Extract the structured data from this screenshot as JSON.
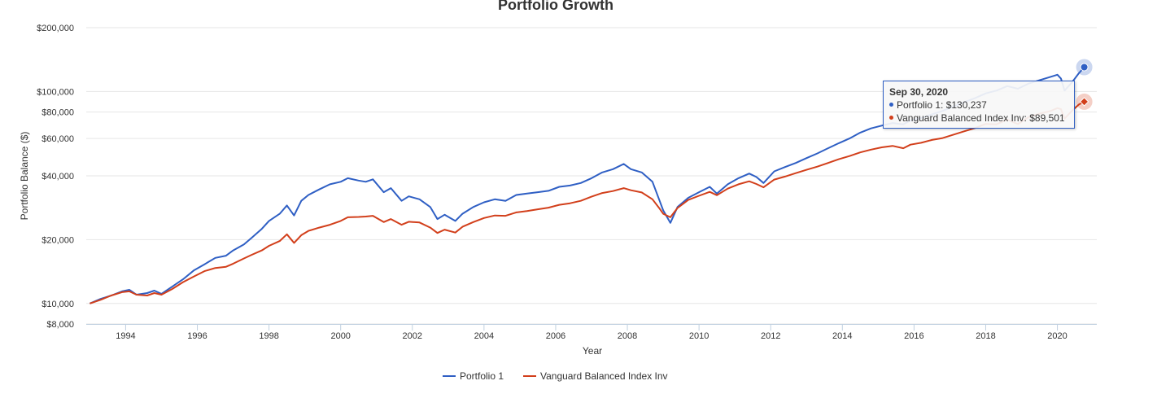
{
  "chart_data": {
    "type": "line",
    "title": "Portfolio Growth",
    "xlabel": "Year",
    "ylabel": "Portfolio Balance ($)",
    "yscale": "log",
    "ylim": [
      8000,
      200000
    ],
    "xlim": [
      1992.9,
      2021.1
    ],
    "yticks": [
      {
        "value": 200000,
        "label": "$200,000"
      },
      {
        "value": 100000,
        "label": "$100,000"
      },
      {
        "value": 80000,
        "label": "$80,000"
      },
      {
        "value": 60000,
        "label": "$60,000"
      },
      {
        "value": 40000,
        "label": "$40,000"
      },
      {
        "value": 20000,
        "label": "$20,000"
      },
      {
        "value": 10000,
        "label": "$10,000"
      },
      {
        "value": 8000,
        "label": "$8,000"
      }
    ],
    "xticks": [
      {
        "value": 1994,
        "label": "1994"
      },
      {
        "value": 1996,
        "label": "1996"
      },
      {
        "value": 1998,
        "label": "1998"
      },
      {
        "value": 2000,
        "label": "2000"
      },
      {
        "value": 2002,
        "label": "2002"
      },
      {
        "value": 2004,
        "label": "2004"
      },
      {
        "value": 2006,
        "label": "2006"
      },
      {
        "value": 2008,
        "label": "2008"
      },
      {
        "value": 2010,
        "label": "2010"
      },
      {
        "value": 2012,
        "label": "2012"
      },
      {
        "value": 2014,
        "label": "2014"
      },
      {
        "value": 2016,
        "label": "2016"
      },
      {
        "value": 2018,
        "label": "2018"
      },
      {
        "value": 2020,
        "label": "2020"
      }
    ],
    "grid": true,
    "legend_position": "bottom",
    "series": [
      {
        "name": "Portfolio 1",
        "color": "#2f5fc4",
        "points": [
          [
            1993.0,
            10000
          ],
          [
            1993.3,
            10500
          ],
          [
            1993.6,
            10900
          ],
          [
            1993.9,
            11400
          ],
          [
            1994.1,
            11600
          ],
          [
            1994.3,
            11000
          ],
          [
            1994.6,
            11200
          ],
          [
            1994.8,
            11500
          ],
          [
            1995.0,
            11100
          ],
          [
            1995.3,
            12000
          ],
          [
            1995.6,
            13000
          ],
          [
            1995.9,
            14300
          ],
          [
            1996.2,
            15300
          ],
          [
            1996.5,
            16400
          ],
          [
            1996.8,
            16800
          ],
          [
            1997.0,
            17800
          ],
          [
            1997.3,
            19000
          ],
          [
            1997.5,
            20300
          ],
          [
            1997.8,
            22500
          ],
          [
            1998.0,
            24500
          ],
          [
            1998.3,
            26500
          ],
          [
            1998.5,
            29000
          ],
          [
            1998.7,
            26000
          ],
          [
            1998.9,
            30500
          ],
          [
            1999.1,
            32500
          ],
          [
            1999.4,
            34500
          ],
          [
            1999.7,
            36500
          ],
          [
            2000.0,
            37500
          ],
          [
            2000.2,
            39000
          ],
          [
            2000.5,
            38000
          ],
          [
            2000.7,
            37500
          ],
          [
            2000.9,
            38500
          ],
          [
            2001.2,
            33500
          ],
          [
            2001.4,
            35000
          ],
          [
            2001.7,
            30500
          ],
          [
            2001.9,
            32000
          ],
          [
            2002.2,
            31000
          ],
          [
            2002.5,
            28500
          ],
          [
            2002.7,
            25000
          ],
          [
            2002.9,
            26200
          ],
          [
            2003.2,
            24500
          ],
          [
            2003.4,
            26500
          ],
          [
            2003.7,
            28500
          ],
          [
            2004.0,
            30000
          ],
          [
            2004.3,
            31000
          ],
          [
            2004.6,
            30500
          ],
          [
            2004.9,
            32500
          ],
          [
            2005.2,
            33000
          ],
          [
            2005.5,
            33500
          ],
          [
            2005.8,
            34000
          ],
          [
            2006.1,
            35500
          ],
          [
            2006.4,
            36000
          ],
          [
            2006.7,
            37000
          ],
          [
            2007.0,
            39000
          ],
          [
            2007.3,
            41500
          ],
          [
            2007.6,
            43000
          ],
          [
            2007.9,
            45500
          ],
          [
            2008.1,
            43000
          ],
          [
            2008.4,
            41500
          ],
          [
            2008.7,
            37500
          ],
          [
            2008.9,
            30500
          ],
          [
            2009.0,
            27500
          ],
          [
            2009.2,
            24000
          ],
          [
            2009.4,
            28500
          ],
          [
            2009.7,
            31500
          ],
          [
            2010.0,
            33500
          ],
          [
            2010.3,
            35500
          ],
          [
            2010.5,
            33000
          ],
          [
            2010.8,
            36500
          ],
          [
            2011.1,
            39000
          ],
          [
            2011.4,
            41000
          ],
          [
            2011.6,
            39500
          ],
          [
            2011.8,
            37000
          ],
          [
            2012.1,
            42000
          ],
          [
            2012.4,
            44000
          ],
          [
            2012.7,
            46000
          ],
          [
            2013.0,
            48500
          ],
          [
            2013.3,
            51000
          ],
          [
            2013.6,
            54000
          ],
          [
            2013.9,
            57000
          ],
          [
            2014.2,
            60000
          ],
          [
            2014.5,
            64000
          ],
          [
            2014.8,
            67000
          ],
          [
            2015.1,
            69000
          ],
          [
            2015.4,
            71000
          ],
          [
            2015.7,
            70000
          ],
          [
            2015.9,
            73000
          ],
          [
            2016.2,
            75000
          ],
          [
            2016.5,
            78000
          ],
          [
            2016.8,
            81000
          ],
          [
            2017.1,
            85000
          ],
          [
            2017.4,
            89000
          ],
          [
            2017.7,
            93000
          ],
          [
            2018.0,
            98000
          ],
          [
            2018.3,
            101000
          ],
          [
            2018.6,
            106000
          ],
          [
            2018.9,
            103000
          ],
          [
            2019.2,
            109000
          ],
          [
            2019.5,
            113000
          ],
          [
            2019.8,
            117000
          ],
          [
            2020.0,
            120000
          ],
          [
            2020.1,
            115000
          ],
          [
            2020.2,
            101000
          ],
          [
            2020.4,
            110000
          ],
          [
            2020.6,
            122000
          ],
          [
            2020.75,
            130237
          ]
        ]
      },
      {
        "name": "Vanguard Balanced Index Inv",
        "color": "#d23f1b",
        "points": [
          [
            1993.0,
            10000
          ],
          [
            1993.3,
            10400
          ],
          [
            1993.6,
            10900
          ],
          [
            1993.9,
            11300
          ],
          [
            1994.1,
            11400
          ],
          [
            1994.3,
            11000
          ],
          [
            1994.6,
            10900
          ],
          [
            1994.8,
            11200
          ],
          [
            1995.0,
            11000
          ],
          [
            1995.3,
            11700
          ],
          [
            1995.6,
            12600
          ],
          [
            1995.9,
            13400
          ],
          [
            1996.2,
            14200
          ],
          [
            1996.5,
            14700
          ],
          [
            1996.8,
            14900
          ],
          [
            1997.0,
            15400
          ],
          [
            1997.3,
            16300
          ],
          [
            1997.5,
            16900
          ],
          [
            1997.8,
            17800
          ],
          [
            1998.0,
            18700
          ],
          [
            1998.3,
            19700
          ],
          [
            1998.5,
            21200
          ],
          [
            1998.7,
            19300
          ],
          [
            1998.9,
            21000
          ],
          [
            1999.1,
            22000
          ],
          [
            1999.4,
            22800
          ],
          [
            1999.7,
            23500
          ],
          [
            2000.0,
            24500
          ],
          [
            2000.2,
            25500
          ],
          [
            2000.5,
            25600
          ],
          [
            2000.7,
            25700
          ],
          [
            2000.9,
            25900
          ],
          [
            2001.2,
            24200
          ],
          [
            2001.4,
            25000
          ],
          [
            2001.7,
            23500
          ],
          [
            2001.9,
            24300
          ],
          [
            2002.2,
            24100
          ],
          [
            2002.5,
            22800
          ],
          [
            2002.7,
            21500
          ],
          [
            2002.9,
            22300
          ],
          [
            2003.2,
            21600
          ],
          [
            2003.4,
            23000
          ],
          [
            2003.7,
            24200
          ],
          [
            2004.0,
            25300
          ],
          [
            2004.3,
            26000
          ],
          [
            2004.6,
            25900
          ],
          [
            2004.9,
            26900
          ],
          [
            2005.2,
            27300
          ],
          [
            2005.5,
            27800
          ],
          [
            2005.8,
            28300
          ],
          [
            2006.1,
            29200
          ],
          [
            2006.4,
            29700
          ],
          [
            2006.7,
            30500
          ],
          [
            2007.0,
            31900
          ],
          [
            2007.3,
            33200
          ],
          [
            2007.6,
            33900
          ],
          [
            2007.9,
            35000
          ],
          [
            2008.1,
            34200
          ],
          [
            2008.4,
            33400
          ],
          [
            2008.7,
            31000
          ],
          [
            2008.9,
            28000
          ],
          [
            2009.0,
            26500
          ],
          [
            2009.2,
            25500
          ],
          [
            2009.4,
            28200
          ],
          [
            2009.7,
            30800
          ],
          [
            2010.0,
            32200
          ],
          [
            2010.3,
            33600
          ],
          [
            2010.5,
            32400
          ],
          [
            2010.8,
            34800
          ],
          [
            2011.1,
            36500
          ],
          [
            2011.4,
            37700
          ],
          [
            2011.6,
            36600
          ],
          [
            2011.8,
            35300
          ],
          [
            2012.1,
            38400
          ],
          [
            2012.4,
            39700
          ],
          [
            2012.7,
            41200
          ],
          [
            2013.0,
            42700
          ],
          [
            2013.3,
            44200
          ],
          [
            2013.6,
            46000
          ],
          [
            2013.9,
            47900
          ],
          [
            2014.2,
            49600
          ],
          [
            2014.5,
            51600
          ],
          [
            2014.8,
            53200
          ],
          [
            2015.1,
            54500
          ],
          [
            2015.4,
            55400
          ],
          [
            2015.7,
            54000
          ],
          [
            2015.9,
            56100
          ],
          [
            2016.2,
            57300
          ],
          [
            2016.5,
            59100
          ],
          [
            2016.8,
            60300
          ],
          [
            2017.1,
            62600
          ],
          [
            2017.4,
            64900
          ],
          [
            2017.7,
            67200
          ],
          [
            2018.0,
            70300
          ],
          [
            2018.3,
            70000
          ],
          [
            2018.6,
            73600
          ],
          [
            2018.9,
            70200
          ],
          [
            2019.2,
            75700
          ],
          [
            2019.5,
            78600
          ],
          [
            2019.8,
            80800
          ],
          [
            2020.0,
            83500
          ],
          [
            2020.1,
            82500
          ],
          [
            2020.2,
            74500
          ],
          [
            2020.4,
            80900
          ],
          [
            2020.6,
            86800
          ],
          [
            2020.75,
            89501
          ]
        ]
      }
    ]
  },
  "tooltip": {
    "date": "Sep 30, 2020",
    "rows": [
      {
        "label": "Portfolio 1: $130,237",
        "color": "#2f5fc4"
      },
      {
        "label": "Vanguard Balanced Index Inv: $89,501",
        "color": "#d23f1b"
      }
    ]
  }
}
